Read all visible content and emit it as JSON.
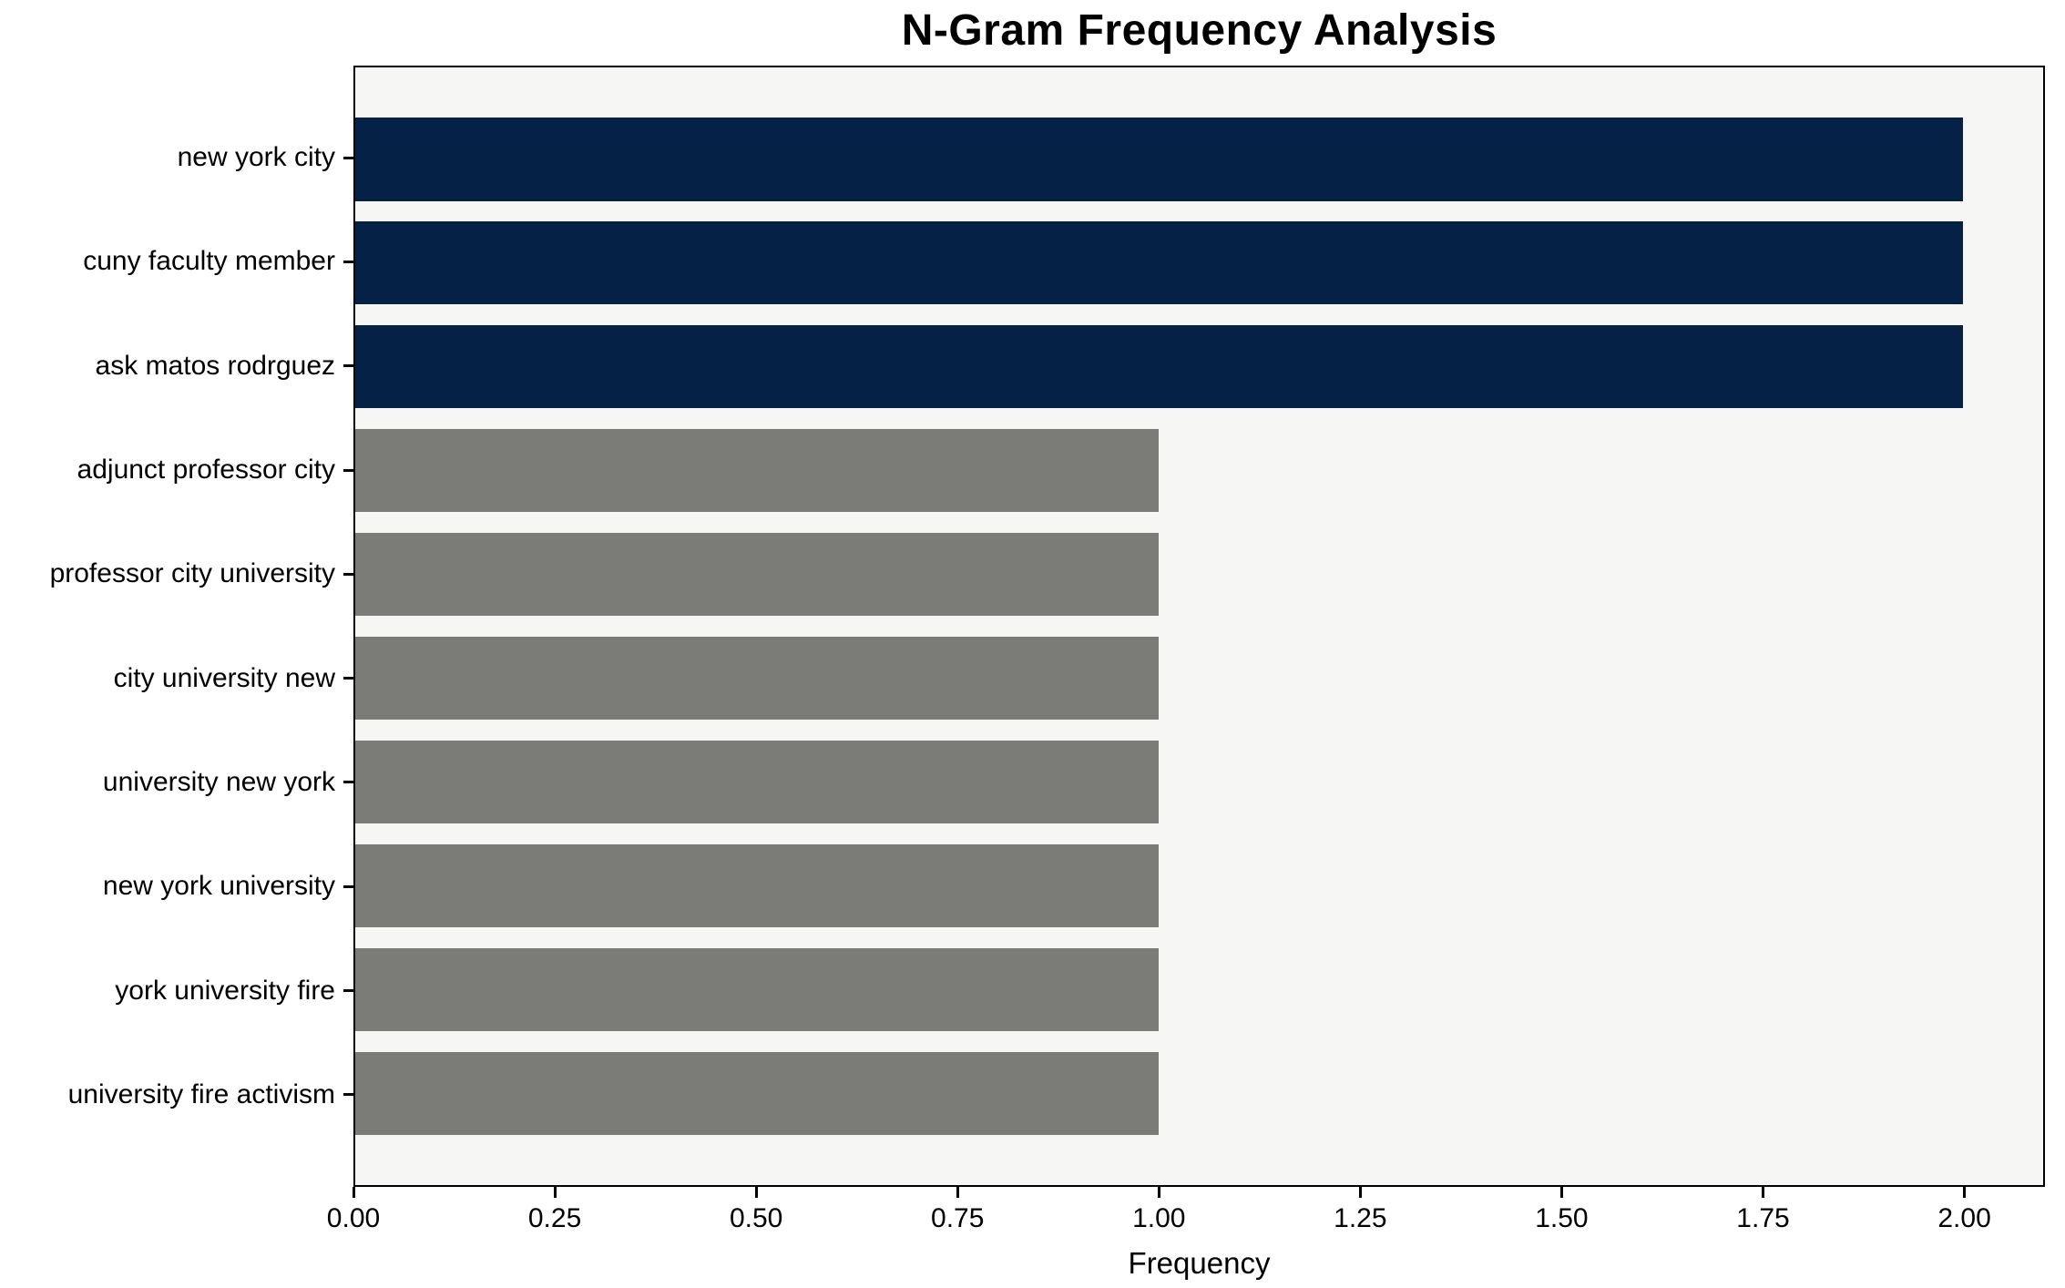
{
  "chart_data": {
    "type": "bar",
    "orientation": "horizontal",
    "title": "N-Gram Frequency Analysis",
    "xlabel": "Frequency",
    "ylabel": "",
    "categories": [
      "new york city",
      "cuny faculty member",
      "ask matos rodrguez",
      "adjunct professor city",
      "professor city university",
      "city university new",
      "university new york",
      "new york university",
      "york university fire",
      "university fire activism"
    ],
    "values": [
      2,
      2,
      2,
      1,
      1,
      1,
      1,
      1,
      1,
      1
    ],
    "bar_colors": [
      "#052246",
      "#052246",
      "#052246",
      "#7b7b78",
      "#7b7b78",
      "#7b7b78",
      "#7b7b78",
      "#7b7b78",
      "#7b7b78",
      "#7b7b78"
    ],
    "xlim": [
      0,
      2.1
    ],
    "xticks": [
      0,
      0.25,
      0.5,
      0.75,
      1,
      1.25,
      1.5,
      1.75,
      2
    ],
    "xtick_labels": [
      "0.00",
      "0.25",
      "0.50",
      "0.75",
      "1.00",
      "1.25",
      "1.50",
      "1.75",
      "2.00"
    ],
    "grid": false,
    "legend": null,
    "colors": {
      "highlight": "#052246",
      "default": "#7b7b78",
      "plot_background": "#f6f6f5",
      "figure_background": "#ffffff",
      "spine": "#000000",
      "text": "#000000"
    }
  }
}
